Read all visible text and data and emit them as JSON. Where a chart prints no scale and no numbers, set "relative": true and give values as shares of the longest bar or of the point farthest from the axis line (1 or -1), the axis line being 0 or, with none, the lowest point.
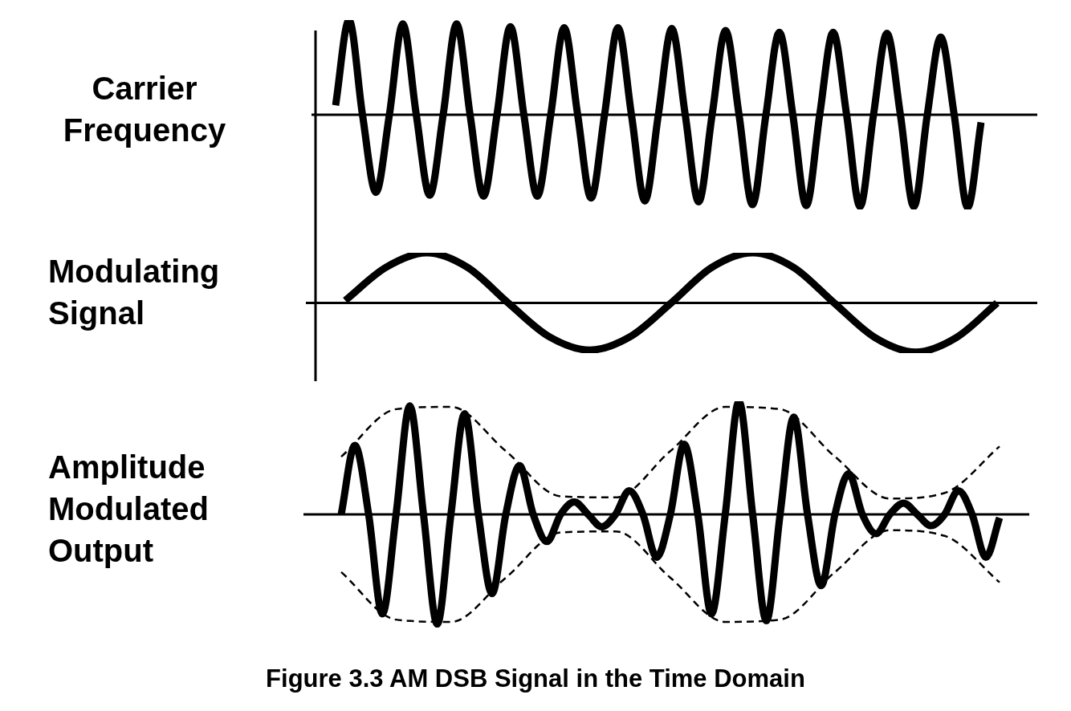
{
  "chart_data": [
    {
      "type": "line",
      "ylabel": "Carrier Frequency",
      "relative": true,
      "categories": [
        null,
        null,
        null,
        null,
        null,
        null,
        null,
        null,
        null,
        null,
        null,
        null,
        null,
        null,
        null,
        null,
        null,
        null,
        null,
        null,
        null,
        null,
        null,
        null,
        null,
        null,
        null,
        null,
        null,
        null,
        null,
        null,
        null,
        null,
        null,
        null,
        null,
        null,
        null,
        null,
        null,
        null,
        null,
        null,
        null,
        null,
        null,
        null,
        null
      ],
      "series": [
        {
          "color": "#000000",
          "values": [
            0.1,
            1,
            0,
            -0.82,
            0,
            0.96,
            0,
            -0.85,
            0,
            0.96,
            0,
            -0.86,
            0,
            0.93,
            0,
            -0.86,
            0,
            0.92,
            0,
            -0.88,
            0,
            0.92,
            0,
            -0.91,
            0,
            0.91,
            0,
            -0.92,
            0,
            0.89,
            0,
            -0.95,
            0,
            0.87,
            0,
            -0.96,
            0,
            0.87,
            0,
            -0.97,
            0,
            0.86,
            0,
            -0.97,
            0,
            0.82,
            0,
            -0.98,
            -0.08
          ]
        }
      ]
    },
    {
      "type": "line",
      "ylabel": "Modulating Signal",
      "relative": true,
      "categories": [
        null,
        null,
        null,
        null,
        null,
        null,
        null,
        null,
        null,
        null,
        null,
        null,
        null,
        null,
        null,
        null,
        null
      ],
      "series": [
        {
          "color": "#000000",
          "values": [
            0.05,
            0.71,
            1,
            0.71,
            0,
            -0.67,
            -0.94,
            -0.67,
            0,
            0.71,
            1,
            0.71,
            0,
            -0.69,
            -0.98,
            -0.69,
            0
          ]
        }
      ]
    },
    {
      "type": "line",
      "ylabel": "Amplitude Modulated Output",
      "relative": true,
      "annotations": [
        "Figure 3.3 AM DSB Signal in the Time Domain"
      ],
      "categories": [
        null,
        null,
        null,
        null,
        null,
        null,
        null,
        null,
        null,
        null,
        null,
        null,
        null,
        null,
        null,
        null,
        null,
        null,
        null,
        null,
        null,
        null,
        null,
        null,
        null,
        null,
        null,
        null,
        null,
        null,
        null,
        null,
        null,
        null,
        null,
        null,
        null,
        null,
        null,
        null,
        null,
        null,
        null,
        null,
        null,
        null,
        null,
        null,
        null
      ],
      "series": [
        {
          "color": "#000000",
          "values": [
            0,
            0.61,
            0,
            -0.88,
            0,
            0.96,
            0,
            -0.97,
            0,
            0.89,
            0,
            -0.7,
            0,
            0.43,
            0,
            -0.24,
            0,
            0.11,
            0,
            -0.11,
            0,
            0.21,
            0,
            -0.38,
            0,
            0.62,
            0,
            -0.88,
            0,
            1,
            0,
            -0.94,
            0,
            0.86,
            0,
            -0.63,
            0,
            0.36,
            0,
            -0.17,
            0,
            0.1,
            0,
            -0.1,
            0,
            0.21,
            0,
            -0.38,
            -0.03
          ]
        },
        {
          "color": "#000000",
          "line_style": "dashed",
          "values": [
            0.51,
            null,
            null,
            null,
            0.93,
            null,
            null,
            null,
            0.95,
            null,
            null,
            null,
            0.56,
            null,
            null,
            null,
            0.16,
            null,
            null,
            null,
            0.15,
            null,
            null,
            null,
            0.56,
            null,
            null,
            null,
            0.95,
            null,
            null,
            null,
            0.93,
            null,
            null,
            null,
            0.51,
            null,
            null,
            null,
            0.14,
            null,
            null,
            null,
            0.19,
            null,
            null,
            null,
            0.6
          ]
        },
        {
          "color": "#000000",
          "line_style": "dashed",
          "values": [
            -0.51,
            null,
            null,
            null,
            -0.93,
            null,
            null,
            null,
            -0.95,
            null,
            null,
            null,
            -0.56,
            null,
            null,
            null,
            -0.16,
            null,
            null,
            null,
            -0.15,
            null,
            null,
            null,
            -0.56,
            null,
            null,
            null,
            -0.95,
            null,
            null,
            null,
            -0.93,
            null,
            null,
            null,
            -0.51,
            null,
            null,
            null,
            -0.14,
            null,
            null,
            null,
            -0.19,
            null,
            null,
            null,
            -0.6
          ]
        }
      ]
    }
  ]
}
